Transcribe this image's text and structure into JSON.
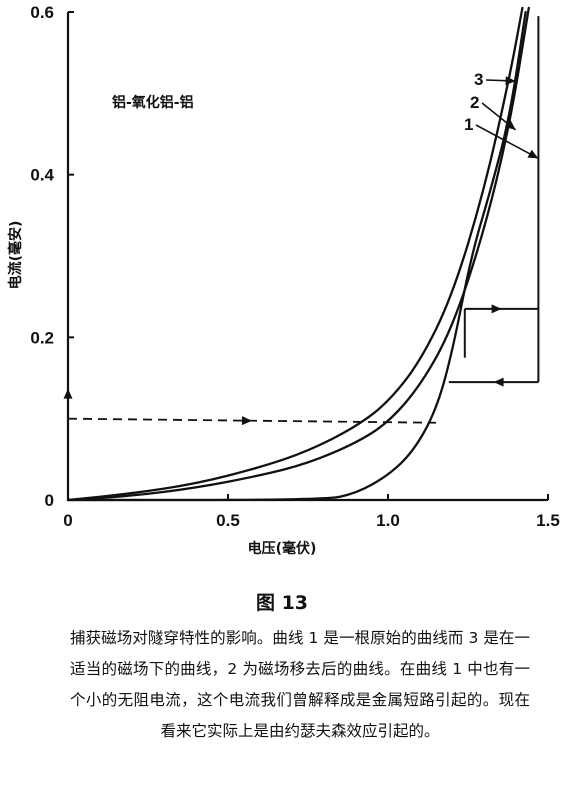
{
  "figure": {
    "title": "图 13",
    "caption": "捕获磁场对隧穿特性的影响。曲线 1 是一根原始的曲线而 3 是在一适当的磁场下的曲线，2 为磁场移去后的曲线。在曲线 1 中也有一个小的无阻电流，这个电流我们曾解释成是金属短路引起的。现在看来它实际上是由约瑟夫森效应引起的。"
  },
  "chart_data": {
    "type": "line",
    "title": "铝-氧化铝-铝",
    "xlabel": "电压(毫伏)",
    "ylabel": "电流(毫安)",
    "xlim": [
      0,
      1.5
    ],
    "ylim": [
      0,
      0.6
    ],
    "x_ticks": [
      "0",
      "0.5",
      "1.0",
      "1.5"
    ],
    "y_ticks": [
      "0",
      "0.2",
      "0.4",
      "0.6"
    ],
    "grid": false,
    "series": [
      {
        "name": "1",
        "x": [
          0,
          0.8,
          0.9,
          1.0,
          1.08,
          1.15,
          1.2,
          1.26,
          1.32,
          1.38,
          1.43
        ],
        "y": [
          0,
          0,
          0.008,
          0.03,
          0.06,
          0.11,
          0.18,
          0.3,
          0.38,
          0.47,
          0.6
        ]
      },
      {
        "name": "2",
        "x": [
          0,
          0.2,
          0.4,
          0.6,
          0.75,
          0.9,
          1.0,
          1.1,
          1.2,
          1.3,
          1.38,
          1.44
        ],
        "y": [
          0,
          0.005,
          0.015,
          0.03,
          0.045,
          0.07,
          0.095,
          0.14,
          0.21,
          0.33,
          0.46,
          0.605
        ]
      },
      {
        "name": "3",
        "x": [
          0,
          0.2,
          0.4,
          0.6,
          0.75,
          0.9,
          1.0,
          1.1,
          1.2,
          1.3,
          1.38,
          1.42
        ],
        "y": [
          0,
          0.008,
          0.02,
          0.04,
          0.06,
          0.09,
          0.12,
          0.17,
          0.25,
          0.38,
          0.52,
          0.605
        ]
      }
    ],
    "annotations": [
      {
        "type": "dashed-arrow",
        "x": [
          0,
          1.15
        ],
        "y": [
          0.1,
          0.095
        ]
      },
      {
        "type": "vertical-line",
        "x": [
          1.47,
          1.47
        ],
        "y": [
          0.145,
          0.595
        ]
      },
      {
        "type": "arrow",
        "x": [
          1.47,
          1.19
        ],
        "y": [
          0.145,
          0.145
        ]
      },
      {
        "type": "arrow",
        "x": [
          1.24,
          1.47
        ],
        "y": [
          0.235,
          0.235
        ]
      },
      {
        "type": "step",
        "x": [
          1.24,
          1.24
        ],
        "y": [
          0.175,
          0.235
        ]
      },
      {
        "type": "vertical-arrow",
        "x": [
          0,
          0
        ],
        "y": [
          0,
          0.1
        ]
      }
    ]
  }
}
